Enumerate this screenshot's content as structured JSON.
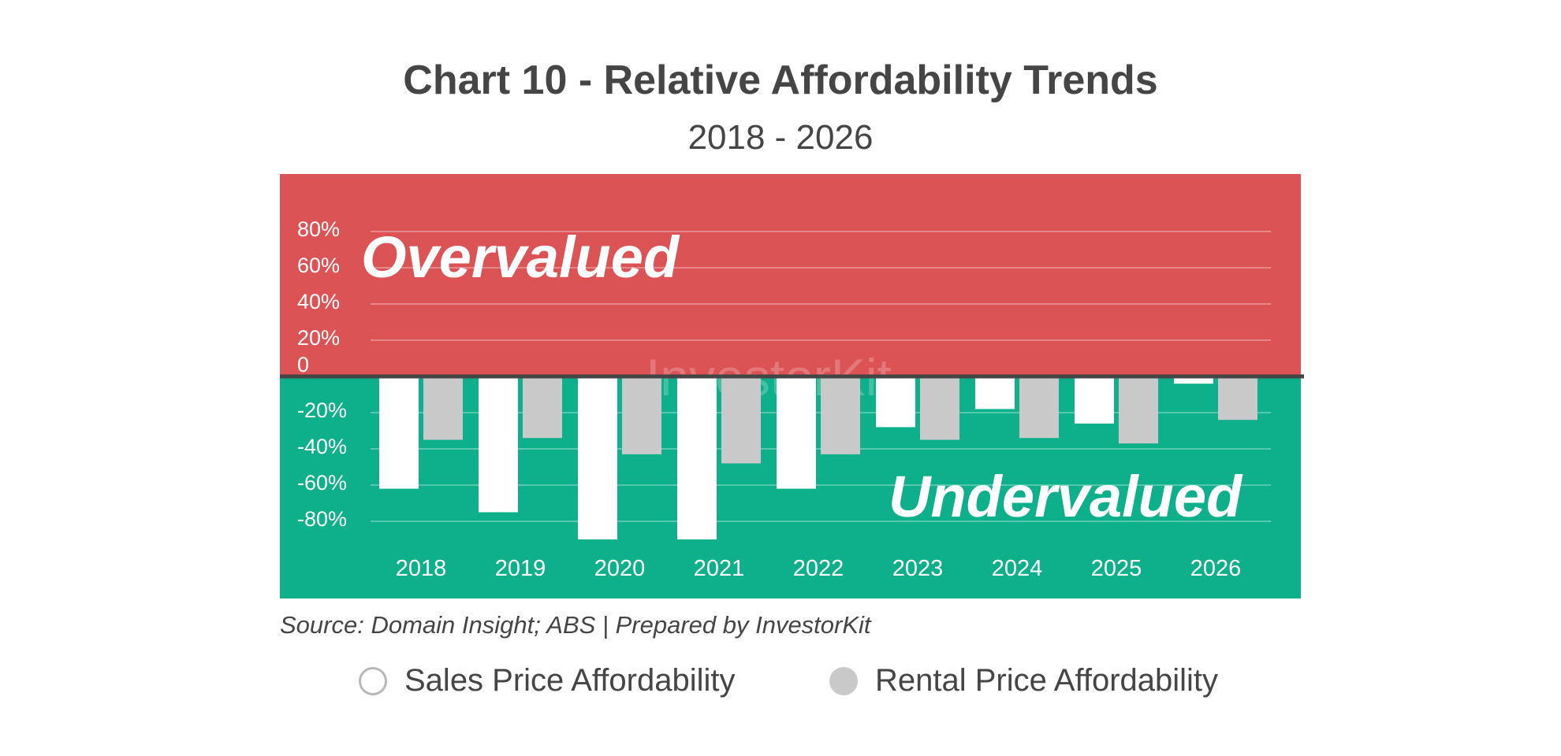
{
  "title": "Chart 10 - Relative Affordability Trends",
  "subtitle": "2018 - 2026",
  "source": "Source: Domain Insight; ABS | Prepared by InvestorKit",
  "watermark": "InvestorKit",
  "zones": {
    "over": "Overvalued",
    "under": "Undervalued"
  },
  "colors": {
    "over_bg": "#dc5356",
    "under_bg": "#0db08a",
    "sales_bar": "#ffffff",
    "rental_bar": "#c9c9c9",
    "baseline": "#454545",
    "text": "#454545"
  },
  "legend": [
    {
      "name": "Sales Price Affordability",
      "style": "outline"
    },
    {
      "name": "Rental Price Affordability",
      "style": "filled"
    }
  ],
  "chart_data": {
    "type": "bar",
    "categories": [
      "2018",
      "2019",
      "2020",
      "2021",
      "2022",
      "2023",
      "2024",
      "2025",
      "2026"
    ],
    "series": [
      {
        "name": "Sales Price Affordability",
        "values": [
          -62,
          -75,
          -90,
          -90,
          -62,
          -28,
          -18,
          -26,
          -4
        ]
      },
      {
        "name": "Rental Price Affordability",
        "values": [
          -35,
          -34,
          -43,
          -48,
          -43,
          -35,
          -34,
          -37,
          -24
        ]
      }
    ],
    "yticks": [
      80,
      60,
      40,
      20,
      0,
      -20,
      -40,
      -60,
      -80
    ],
    "ytick_labels": [
      "80%",
      "60%",
      "40%",
      "20%",
      "0",
      "-20%",
      "-40%",
      "-60%",
      "-80%"
    ],
    "ylim": [
      -112,
      112
    ],
    "grid": true,
    "legend_position": "bottom"
  }
}
